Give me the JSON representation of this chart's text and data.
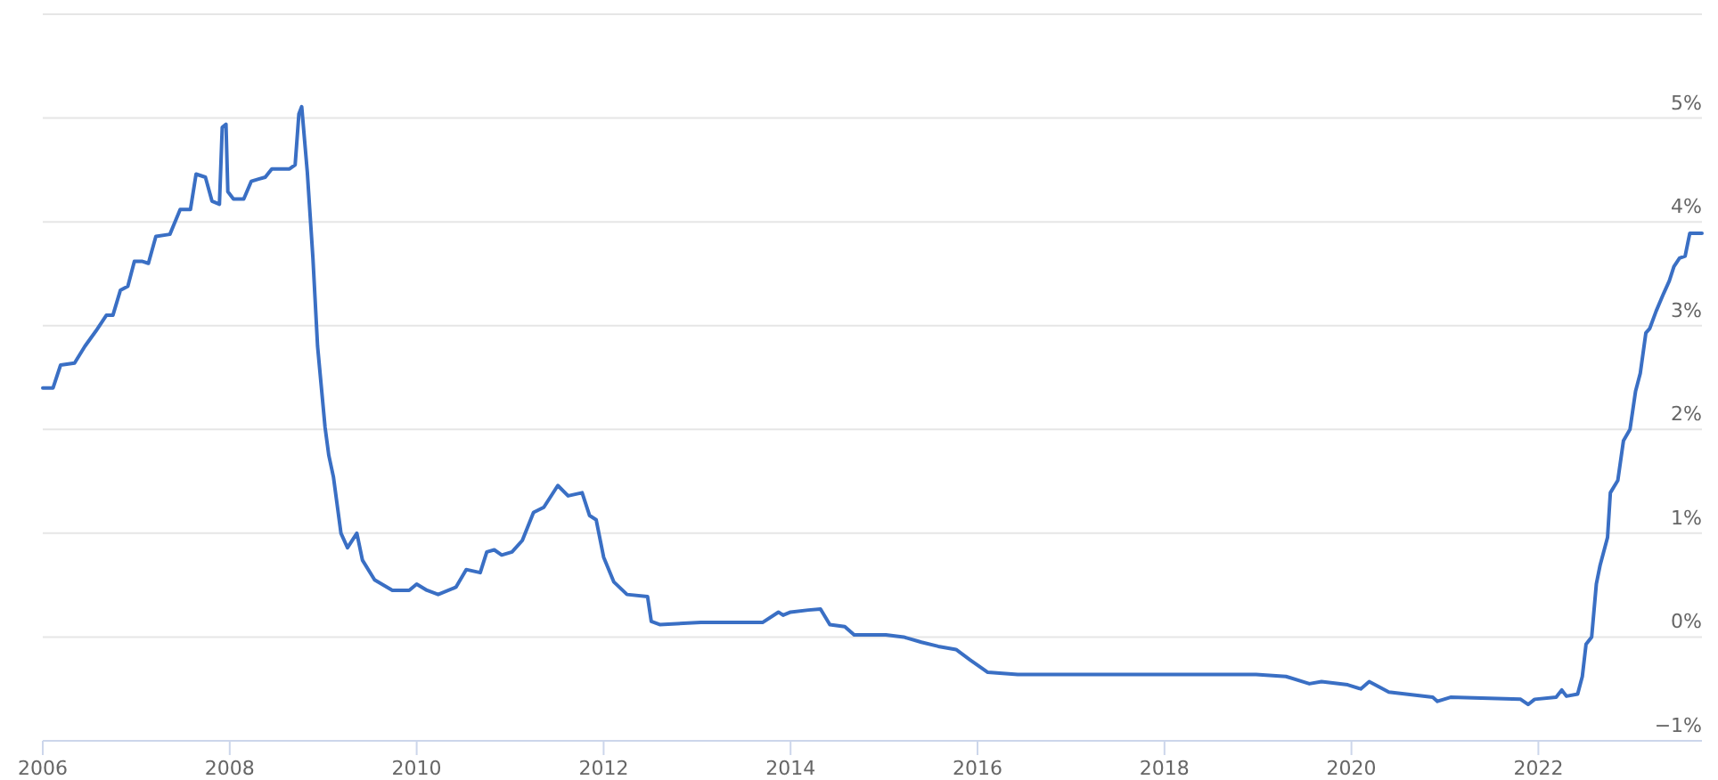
{
  "chart_data": {
    "type": "line",
    "xlim": [
      2006,
      2023.75
    ],
    "xticks": [
      2006,
      2008,
      2010,
      2012,
      2014,
      2016,
      2018,
      2020,
      2022
    ],
    "ylim": [
      -1,
      6
    ],
    "yticks": [
      {
        "value": -1,
        "label": "−1%"
      },
      {
        "value": 0,
        "label": "0%"
      },
      {
        "value": 1,
        "label": "1%"
      },
      {
        "value": 2,
        "label": "2%"
      },
      {
        "value": 3,
        "label": "3%"
      },
      {
        "value": 4,
        "label": "4%"
      },
      {
        "value": 5,
        "label": "5%"
      },
      {
        "value": 6,
        "label": null
      }
    ],
    "grid": "y",
    "marker": "none",
    "line_style": "solid",
    "series": [
      {
        "color": "#3a6fc4",
        "x": [
          2006.0,
          2006.11,
          2006.19,
          2006.34,
          2006.45,
          2006.57,
          2006.68,
          2006.75,
          2006.83,
          2006.91,
          2006.98,
          2007.06,
          2007.13,
          2007.21,
          2007.36,
          2007.47,
          2007.58,
          2007.64,
          2007.74,
          2007.81,
          2007.89,
          2007.92,
          2007.96,
          2007.98,
          2008.04,
          2008.15,
          2008.23,
          2008.3,
          2008.38,
          2008.45,
          2008.64,
          2008.7,
          2008.74,
          2008.77,
          2008.83,
          2008.89,
          2008.94,
          2009.02,
          2009.06,
          2009.11,
          2009.19,
          2009.26,
          2009.36,
          2009.42,
          2009.55,
          2009.74,
          2009.92,
          2010.0,
          2010.11,
          2010.23,
          2010.42,
          2010.53,
          2010.68,
          2010.75,
          2010.83,
          2010.91,
          2011.02,
          2011.13,
          2011.25,
          2011.36,
          2011.51,
          2011.62,
          2011.77,
          2011.85,
          2011.92,
          2012.0,
          2012.11,
          2012.25,
          2012.47,
          2012.51,
          2012.6,
          2013.04,
          2013.7,
          2013.87,
          2013.92,
          2014.0,
          2014.19,
          2014.32,
          2014.42,
          2014.58,
          2014.68,
          2014.89,
          2015.02,
          2015.21,
          2015.4,
          2015.58,
          2015.77,
          2015.92,
          2016.11,
          2016.43,
          2017.09,
          2018.98,
          2019.3,
          2019.55,
          2019.68,
          2019.96,
          2020.1,
          2020.19,
          2020.4,
          2020.87,
          2020.92,
          2021.06,
          2021.81,
          2021.89,
          2021.96,
          2022.19,
          2022.25,
          2022.3,
          2022.42,
          2022.47,
          2022.51,
          2022.57,
          2022.62,
          2022.66,
          2022.74,
          2022.77,
          2022.85,
          2022.91,
          2022.98,
          2023.04,
          2023.09,
          2023.15,
          2023.19,
          2023.26,
          2023.34,
          2023.4,
          2023.45,
          2023.51,
          2023.57,
          2023.62,
          2023.75
        ],
        "values": [
          2.4,
          2.4,
          2.62,
          2.64,
          2.8,
          2.95,
          3.1,
          3.1,
          3.34,
          3.38,
          3.62,
          3.62,
          3.6,
          3.86,
          3.88,
          4.12,
          4.12,
          4.46,
          4.43,
          4.2,
          4.17,
          4.91,
          4.94,
          4.29,
          4.22,
          4.22,
          4.39,
          4.41,
          4.43,
          4.51,
          4.51,
          4.55,
          5.04,
          5.11,
          4.48,
          3.65,
          2.8,
          2.02,
          1.75,
          1.54,
          1.0,
          0.86,
          1.0,
          0.74,
          0.55,
          0.45,
          0.45,
          0.51,
          0.45,
          0.41,
          0.48,
          0.65,
          0.62,
          0.82,
          0.84,
          0.79,
          0.82,
          0.93,
          1.2,
          1.25,
          1.46,
          1.36,
          1.39,
          1.17,
          1.13,
          0.77,
          0.53,
          0.41,
          0.39,
          0.15,
          0.12,
          0.14,
          0.14,
          0.24,
          0.21,
          0.24,
          0.26,
          0.27,
          0.12,
          0.1,
          0.02,
          0.02,
          0.02,
          0.0,
          -0.05,
          -0.09,
          -0.12,
          -0.22,
          -0.34,
          -0.36,
          -0.36,
          -0.36,
          -0.38,
          -0.45,
          -0.43,
          -0.46,
          -0.5,
          -0.43,
          -0.53,
          -0.58,
          -0.62,
          -0.58,
          -0.6,
          -0.65,
          -0.6,
          -0.58,
          -0.51,
          -0.57,
          -0.55,
          -0.38,
          -0.07,
          0.0,
          0.51,
          0.69,
          0.96,
          1.39,
          1.51,
          1.89,
          2.0,
          2.37,
          2.54,
          2.93,
          2.97,
          3.14,
          3.31,
          3.43,
          3.57,
          3.65,
          3.67,
          3.89,
          3.89
        ]
      }
    ]
  }
}
